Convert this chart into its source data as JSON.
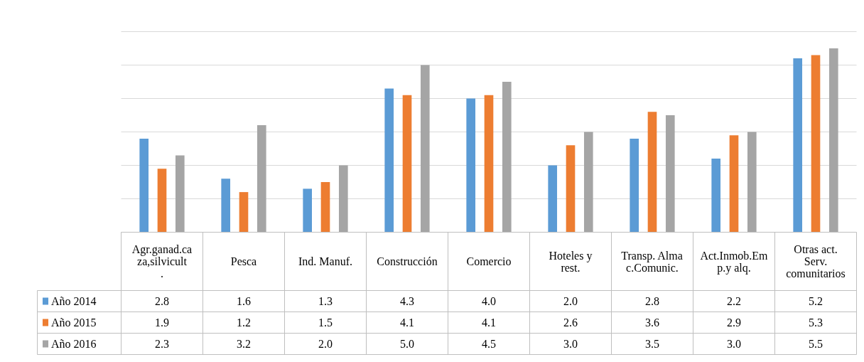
{
  "chart_data": {
    "type": "bar",
    "categories": [
      "Agr.ganad.caza,silvicult.",
      "Pesca",
      "Ind. Manuf.",
      "Construcción",
      "Comercio",
      "Hoteles y rest.",
      "Transp. Almac.Comunic.",
      "Act.Inmob.Emp.y alq.",
      "Otras act. Serv. comunitarios"
    ],
    "series": [
      {
        "name": "Año 2014",
        "color": "#5b9bd5",
        "values": [
          2.8,
          1.6,
          1.3,
          4.3,
          4.0,
          2.0,
          2.8,
          2.2,
          5.2
        ],
        "value_labels": [
          "2.8",
          "1.6",
          "1.3",
          "4.3",
          "4.0",
          "2.0",
          "2.8",
          "2.2",
          "5.2"
        ]
      },
      {
        "name": "Año 2015",
        "color": "#ed7d31",
        "values": [
          1.9,
          1.2,
          1.5,
          4.1,
          4.1,
          2.6,
          3.6,
          2.9,
          5.3
        ],
        "value_labels": [
          "1.9",
          "1.2",
          "1.5",
          "4.1",
          "4.1",
          "2.6",
          "3.6",
          "2.9",
          "5.3"
        ]
      },
      {
        "name": "Año 2016",
        "color": "#a5a5a5",
        "values": [
          2.3,
          3.2,
          2.0,
          5.0,
          4.5,
          3.0,
          3.5,
          3.0,
          5.5
        ],
        "value_labels": [
          "2.3",
          "3.2",
          "2.0",
          "5.0",
          "4.5",
          "3.0",
          "3.5",
          "3.0",
          "5.5"
        ]
      }
    ],
    "ylim": [
      0,
      6
    ],
    "yticks": [
      {
        "value": 0,
        "label": null
      },
      {
        "value": 1,
        "label": null
      },
      {
        "value": 2,
        "label": null
      },
      {
        "value": 3,
        "label": null
      },
      {
        "value": 4,
        "label": null
      },
      {
        "value": 5,
        "label": null
      },
      {
        "value": 6,
        "label": null
      }
    ],
    "tick_labels": "x",
    "grid": "y",
    "legend": "bottom left"
  }
}
